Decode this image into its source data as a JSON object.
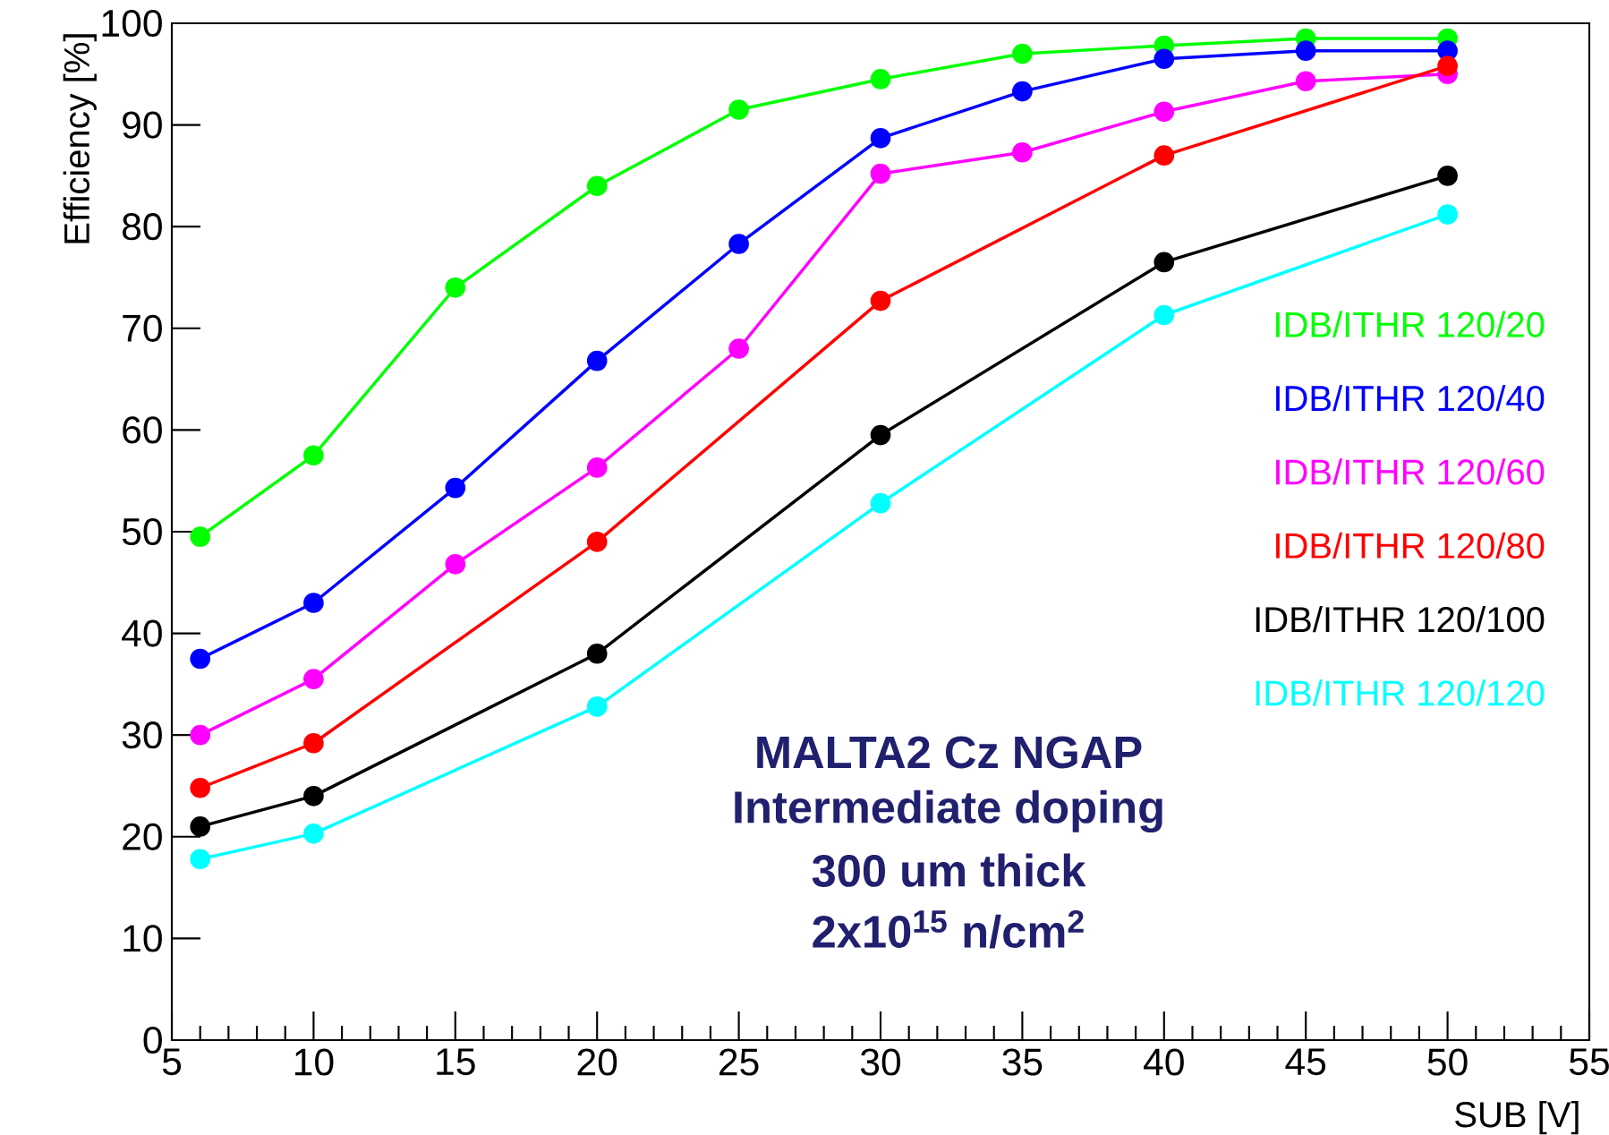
{
  "chart_data": {
    "type": "line",
    "xlabel": "SUB [V]",
    "ylabel": "Efficiency [%]",
    "x": [
      6,
      10,
      15,
      20,
      25,
      30,
      35,
      40,
      45,
      50
    ],
    "series": [
      {
        "name": "IDB/ITHR 120/20",
        "color": "#00ff00",
        "values": [
          49.5,
          57.5,
          74,
          84,
          91.5,
          94.5,
          97,
          97.8,
          98.5,
          98.5
        ]
      },
      {
        "name": "IDB/ITHR 120/40",
        "color": "#0000ff",
        "values": [
          37.5,
          43,
          54.3,
          66.8,
          78.3,
          88.7,
          93.3,
          96.5,
          97.3,
          97.3
        ]
      },
      {
        "name": "IDB/ITHR 120/60",
        "color": "#ff00ff",
        "values": [
          30,
          35.5,
          46.8,
          56.3,
          68,
          85.2,
          87.3,
          91.3,
          94.3,
          95
        ]
      },
      {
        "name": "IDB/ITHR 120/80",
        "color": "#ff0000",
        "x": [
          6,
          10,
          20,
          30,
          40,
          50
        ],
        "values": [
          24.8,
          29.2,
          49,
          72.7,
          87,
          95.8
        ]
      },
      {
        "name": "IDB/ITHR 120/100",
        "color": "#000000",
        "x": [
          6,
          10,
          20,
          30,
          40,
          50
        ],
        "values": [
          21,
          24,
          38,
          59.5,
          76.5,
          85
        ]
      },
      {
        "name": "IDB/ITHR 120/120",
        "color": "#00ffff",
        "x": [
          6,
          10,
          20,
          30,
          40,
          50
        ],
        "values": [
          17.8,
          20.3,
          32.8,
          52.8,
          71.3,
          81.2
        ]
      }
    ],
    "annotations": [
      "MALTA2 Cz NGAP",
      "Intermediate doping",
      "300 um thick",
      "2x10$^{15}$ n/cm$^{2}$"
    ],
    "xlim": [
      5,
      55
    ],
    "xticks": [
      5,
      10,
      15,
      20,
      25,
      30,
      35,
      40,
      45,
      50,
      55
    ],
    "ylim": [
      0,
      100
    ],
    "yticks": [
      0,
      10,
      20,
      30,
      40,
      50,
      60,
      70,
      80,
      90,
      100
    ],
    "legend": "right",
    "marker": "circle",
    "line_style": "solid"
  }
}
